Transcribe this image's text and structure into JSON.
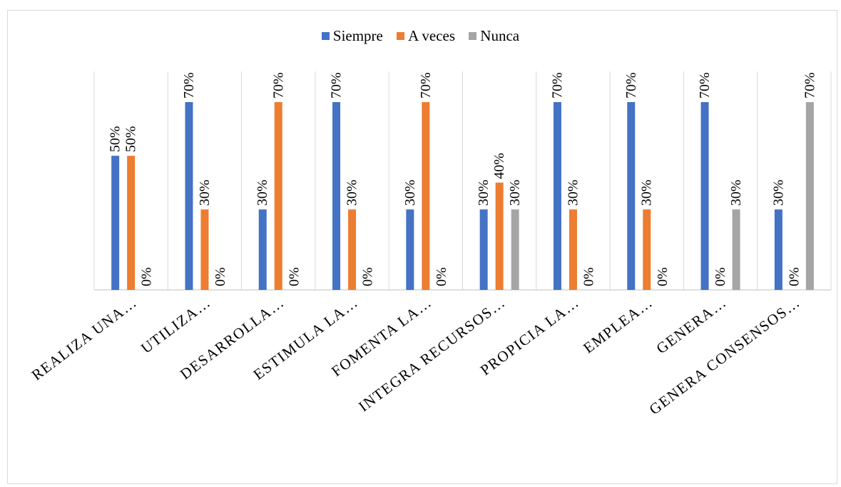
{
  "chart_data": {
    "type": "bar",
    "categories": [
      "REALIZA UNA…",
      "UTILIZA…",
      "DESARROLLA…",
      "ESTIMULA LA…",
      "FOMENTA LA…",
      "INTEGRA RECURSOS…",
      "PROPICIA LA…",
      "EMPLEA…",
      "GENERA…",
      "GENERA CONSENSOS…"
    ],
    "series": [
      {
        "name": "Siempre",
        "color": "#4472C4",
        "values": [
          50,
          70,
          30,
          70,
          30,
          30,
          70,
          70,
          70,
          30
        ]
      },
      {
        "name": "A veces",
        "color": "#ED7D31",
        "values": [
          50,
          30,
          70,
          30,
          70,
          40,
          30,
          30,
          0,
          0
        ]
      },
      {
        "name": "Nunca",
        "color": "#A5A5A5",
        "values": [
          0,
          0,
          0,
          0,
          0,
          30,
          0,
          0,
          30,
          70
        ]
      }
    ],
    "value_suffix": "%",
    "ylim": [
      0,
      70
    ],
    "grid": "vertical category separators",
    "legend_position": "top",
    "title": "",
    "xlabel": "",
    "ylabel": ""
  }
}
